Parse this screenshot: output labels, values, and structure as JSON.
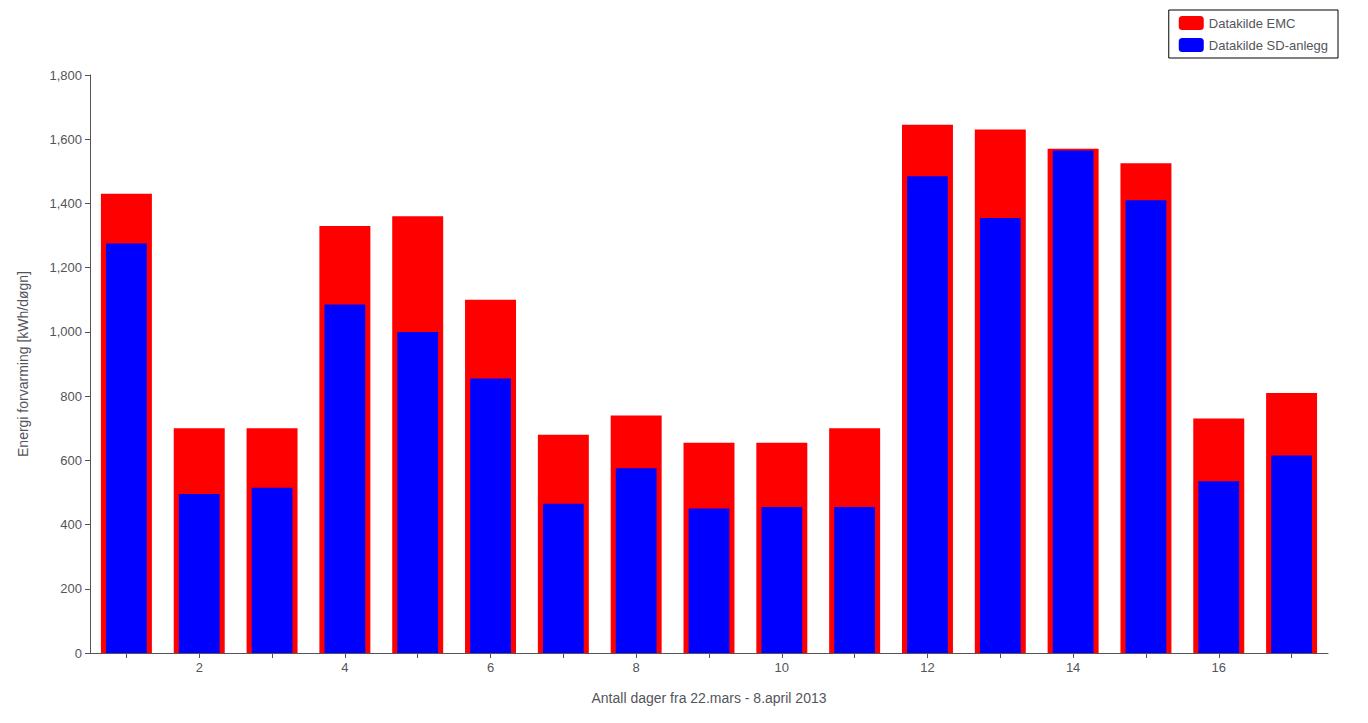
{
  "chart_data": {
    "type": "bar",
    "xlabel": "Antall dager fra 22.mars - 8.april 2013",
    "ylabel": "Energi forvarming [kWh/døgn]",
    "categories": [
      null,
      "2",
      null,
      "4",
      null,
      "6",
      null,
      "8",
      null,
      "10",
      null,
      "12",
      null,
      "14",
      null,
      "16",
      null
    ],
    "series": [
      {
        "name": "Datakilde EMC",
        "color": "#ff0000",
        "values": [
          1430,
          700,
          700,
          1330,
          1360,
          1100,
          680,
          740,
          655,
          655,
          700,
          1645,
          1630,
          1570,
          1525,
          730,
          810
        ]
      },
      {
        "name": "Datakilde SD-anlegg",
        "color": "#0000ff",
        "values": [
          1275,
          495,
          515,
          1085,
          1000,
          855,
          465,
          575,
          450,
          455,
          455,
          1485,
          1355,
          1565,
          1410,
          535,
          615
        ]
      }
    ],
    "ylim": [
      0,
      1800
    ],
    "yticks": [
      0,
      200,
      400,
      600,
      800,
      1000,
      1200,
      1400,
      1600,
      1800
    ],
    "grid": false,
    "legend": "upper right"
  }
}
